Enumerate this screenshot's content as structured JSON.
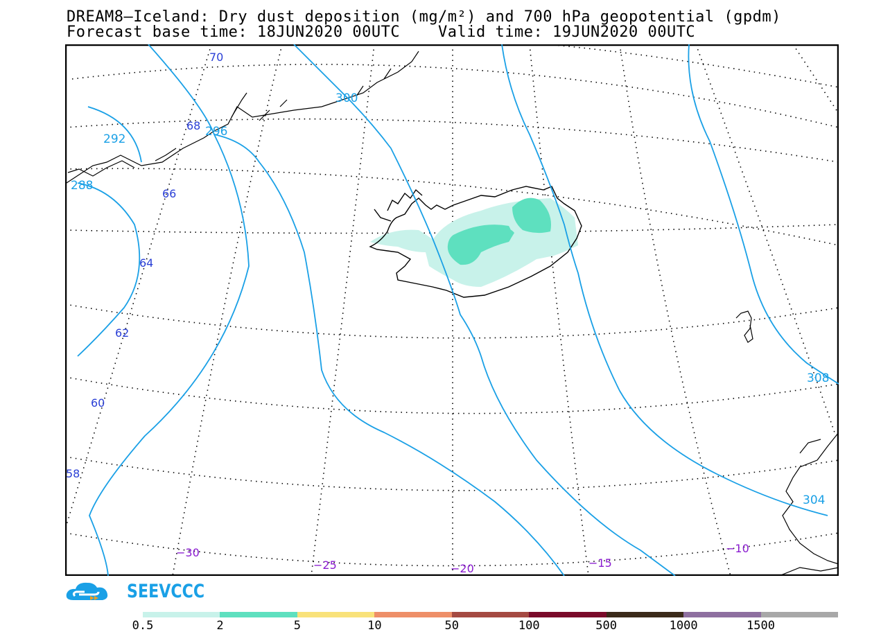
{
  "title": {
    "line1": "DREAM8–Iceland: Dry dust deposition (mg/m²) and 700 hPa geopotential (gpdm)",
    "line2": "Forecast base time: 18JUN2020 00UTC    Valid time: 19JUN2020 00UTC"
  },
  "logo": {
    "text": "SEEVCCC",
    "icon": "cloud-icon"
  },
  "map": {
    "region": "Iceland",
    "latitude_labels": [
      "70",
      "68",
      "66",
      "64",
      "62",
      "60",
      "58"
    ],
    "longitude_labels": [
      "−30",
      "−25",
      "−20",
      "−15",
      "−10"
    ],
    "geopotential_contour_labels": [
      "292",
      "288",
      "296",
      "300",
      "304",
      "308"
    ],
    "colors": {
      "contour": "#1aa0e6",
      "lat_label": "#2a3fd6",
      "lon_label": "#8a1bd0",
      "dust_light": "#c8f2ea",
      "dust_medium": "#5ee0bf"
    }
  },
  "colorbar": {
    "labels": [
      "0.5",
      "2",
      "5",
      "10",
      "50",
      "100",
      "500",
      "1000",
      "1500"
    ],
    "colors": [
      "#c8f2ea",
      "#5ee0bf",
      "#f9e27a",
      "#ee8f68",
      "#a54a42",
      "#7a0b2a",
      "#3b2a1a",
      "#8e6fa0",
      "#a8a8a8"
    ]
  }
}
